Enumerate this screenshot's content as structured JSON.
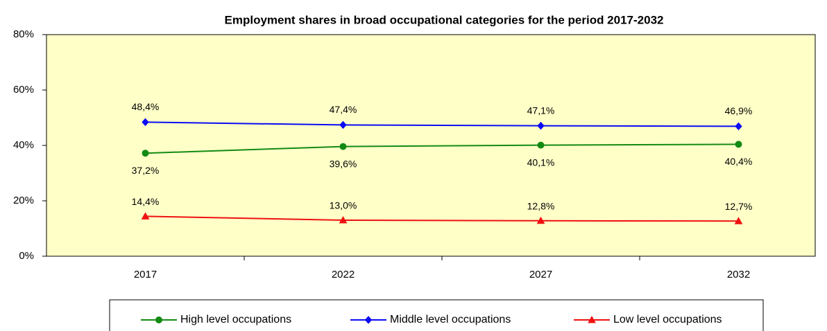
{
  "chart_data": {
    "type": "line",
    "title": "Employment shares in broad occupational categories for the period 2017-2032",
    "categories": [
      "2017",
      "2022",
      "2027",
      "2032"
    ],
    "series": [
      {
        "name": "High level occupations",
        "color": "#138a13",
        "marker": "circle",
        "values": [
          37.2,
          39.6,
          40.1,
          40.4
        ],
        "value_labels": [
          "37,2%",
          "39,6%",
          "40,1%",
          "40,4%"
        ]
      },
      {
        "name": "Middle level occupations",
        "color": "#0a0af5",
        "marker": "diamond",
        "values": [
          48.4,
          47.4,
          47.1,
          46.9
        ],
        "value_labels": [
          "48,4%",
          "47,4%",
          "47,1%",
          "46,9%"
        ]
      },
      {
        "name": "Low level occupations",
        "color": "#f01010",
        "marker": "triangle",
        "values": [
          14.4,
          13.0,
          12.8,
          12.7
        ],
        "value_labels": [
          "14,4%",
          "13,0%",
          "12,8%",
          "12,7%"
        ]
      }
    ],
    "ylim": [
      0,
      80
    ],
    "yticks": [
      {
        "value": 0,
        "label": "0%"
      },
      {
        "value": 20,
        "label": "20%"
      },
      {
        "value": 40,
        "label": "40%"
      },
      {
        "value": 60,
        "label": "60%"
      },
      {
        "value": 80,
        "label": "80%"
      }
    ],
    "plot_background": "#ffffc8",
    "legend": "bottom"
  }
}
